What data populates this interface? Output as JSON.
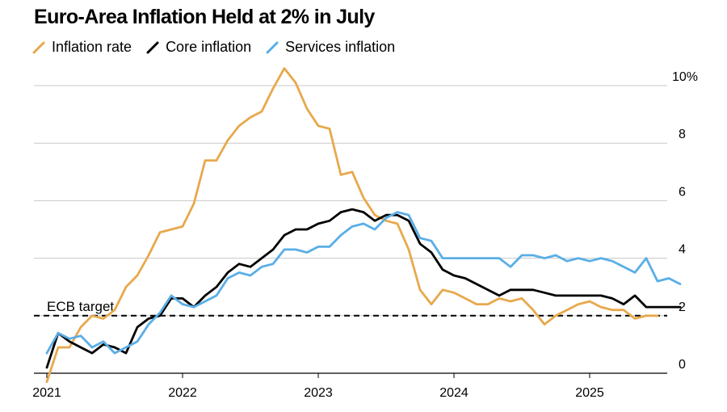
{
  "title": "Euro-Area Inflation Held at 2% in July",
  "chart_data": {
    "type": "line",
    "title": "Euro-Area Inflation Held at 2% in July",
    "xlabel": "",
    "ylabel": "",
    "ylim": [
      0,
      10
    ],
    "y_ticks": [
      {
        "value": 0,
        "label": "0"
      },
      {
        "value": 2,
        "label": "2"
      },
      {
        "value": 4,
        "label": "4"
      },
      {
        "value": 6,
        "label": "6"
      },
      {
        "value": 8,
        "label": "8"
      },
      {
        "value": 10,
        "label": "10%"
      }
    ],
    "x_ticks": [
      "2021",
      "2022",
      "2023",
      "2024",
      "2025"
    ],
    "start": "2021-01",
    "grid": true,
    "legend_position": "top-left",
    "reference_line": {
      "value": 2,
      "label": "ECB target",
      "style": "dashed"
    },
    "series": [
      {
        "name": "Inflation rate",
        "color": "#e8a84c",
        "values": [
          -0.3,
          0.9,
          0.9,
          1.6,
          2.0,
          1.9,
          2.2,
          3.0,
          3.4,
          4.1,
          4.9,
          5.0,
          5.1,
          5.9,
          7.4,
          7.4,
          8.1,
          8.6,
          8.9,
          9.1,
          9.9,
          10.6,
          10.1,
          9.2,
          8.6,
          8.5,
          6.9,
          7.0,
          6.1,
          5.5,
          5.3,
          5.2,
          4.3,
          2.9,
          2.4,
          2.9,
          2.8,
          2.6,
          2.4,
          2.4,
          2.6,
          2.5,
          2.6,
          2.2,
          1.7,
          2.0,
          2.2,
          2.4,
          2.5,
          2.3,
          2.2,
          2.2,
          1.9,
          2.0,
          2.0
        ]
      },
      {
        "name": "Core inflation",
        "color": "#000000",
        "values": [
          0.2,
          1.4,
          1.1,
          0.9,
          0.7,
          1.0,
          0.9,
          0.7,
          1.6,
          1.9,
          2.0,
          2.6,
          2.6,
          2.3,
          2.7,
          3.0,
          3.5,
          3.8,
          3.7,
          4.0,
          4.3,
          4.8,
          5.0,
          5.0,
          5.2,
          5.3,
          5.6,
          5.7,
          5.6,
          5.3,
          5.5,
          5.5,
          5.3,
          4.5,
          4.2,
          3.6,
          3.4,
          3.3,
          3.1,
          2.9,
          2.7,
          2.9,
          2.9,
          2.9,
          2.8,
          2.7,
          2.7,
          2.7,
          2.7,
          2.7,
          2.6,
          2.4,
          2.7,
          2.3,
          2.3,
          2.3,
          2.3
        ]
      },
      {
        "name": "Services inflation",
        "color": "#5aaee6",
        "values": [
          0.7,
          1.4,
          1.2,
          1.3,
          0.9,
          1.1,
          0.7,
          0.9,
          1.1,
          1.7,
          2.1,
          2.7,
          2.4,
          2.3,
          2.5,
          2.7,
          3.3,
          3.5,
          3.4,
          3.7,
          3.8,
          4.3,
          4.3,
          4.2,
          4.4,
          4.4,
          4.8,
          5.1,
          5.2,
          5.0,
          5.4,
          5.6,
          5.5,
          4.7,
          4.6,
          4.0,
          4.0,
          4.0,
          4.0,
          4.0,
          4.0,
          3.7,
          4.1,
          4.1,
          4.0,
          4.1,
          3.9,
          4.0,
          3.9,
          4.0,
          3.9,
          3.7,
          3.5,
          4.0,
          3.2,
          3.3,
          3.1
        ]
      }
    ]
  }
}
